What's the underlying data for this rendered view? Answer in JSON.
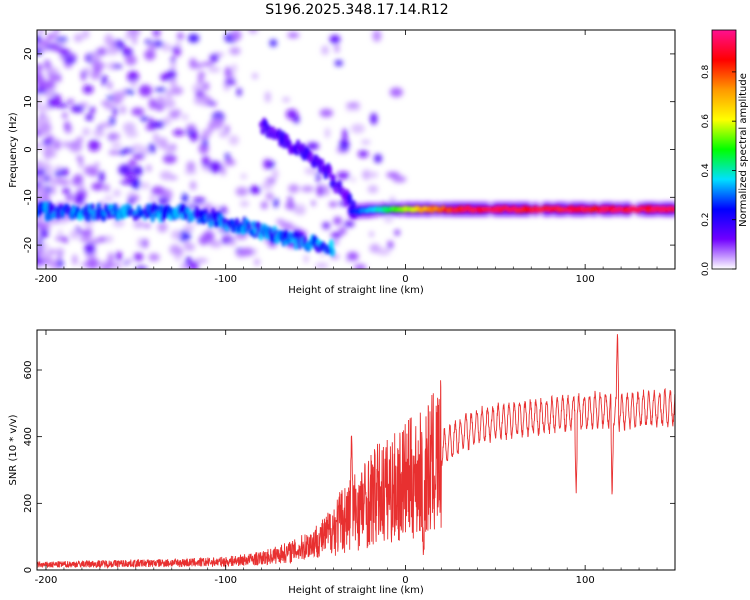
{
  "title": "S196.2025.348.17.14.R12",
  "chart_data": [
    {
      "type": "heatmap",
      "xlabel": "Height of straight line (km)",
      "ylabel": "Frequency (Hz)",
      "xlim": [
        -205,
        150
      ],
      "ylim": [
        -25,
        25
      ],
      "xticks": [
        -200,
        -100,
        0,
        100
      ],
      "yticks": [
        -20,
        -10,
        0,
        10,
        20
      ],
      "colorbar": {
        "label": "Normalized spectral amplitude",
        "range": [
          0,
          0.97
        ],
        "ticks": [
          0.0,
          0.2,
          0.4,
          0.6,
          0.8
        ],
        "tick_labels": [
          "0.0",
          "0.2",
          "0.4",
          "0.6",
          "0.8"
        ],
        "colors": [
          "#ffffff",
          "#7000ff",
          "#0000ff",
          "#00e0ff",
          "#00ff00",
          "#ffff00",
          "#ff9900",
          "#ff0000",
          "#ff1090"
        ]
      },
      "bands": [
        {
          "name": "main-band",
          "points": [
            [
              -205,
              -13
            ],
            [
              -180,
              -13
            ],
            [
              -150,
              -13
            ],
            [
              -120,
              -13.5
            ],
            [
              -100,
              -15
            ],
            [
              -80,
              -17
            ],
            [
              -60,
              -19
            ],
            [
              -40,
              -21
            ]
          ],
          "amplitude": 0.25
        },
        {
          "name": "rising-trace",
          "points": [
            [
              -80,
              5
            ],
            [
              -60,
              0
            ],
            [
              -45,
              -4
            ],
            [
              -35,
              -9
            ],
            [
              -28,
              -13
            ]
          ],
          "amplitude": 0.15
        },
        {
          "name": "steady-band",
          "points": [
            [
              -30,
              -13
            ],
            [
              -10,
              -12.5
            ],
            [
              0,
              -12.5
            ],
            [
              20,
              -12.5
            ],
            [
              60,
              -12.5
            ],
            [
              100,
              -12.5
            ],
            [
              150,
              -12.5
            ]
          ],
          "amplitude": 0.85
        }
      ]
    },
    {
      "type": "line",
      "xlabel": "Height of straight line (km)",
      "ylabel": "SNR (10 * v/v)",
      "xlim": [
        -205,
        150
      ],
      "ylim": [
        0,
        720
      ],
      "xticks": [
        -200,
        -100,
        0,
        100
      ],
      "yticks": [
        0,
        200,
        400,
        600
      ],
      "color": "#e83030",
      "series": {
        "x": [
          -205,
          -180,
          -150,
          -120,
          -100,
          -80,
          -60,
          -45,
          -35,
          -25,
          -15,
          -5,
          0,
          10,
          20,
          30,
          40,
          50,
          60,
          70,
          80,
          90,
          100,
          110,
          120,
          130,
          140,
          150
        ],
        "y": [
          15,
          18,
          20,
          22,
          25,
          35,
          60,
          100,
          160,
          200,
          240,
          260,
          280,
          300,
          360,
          400,
          430,
          440,
          450,
          455,
          460,
          470,
          470,
          480,
          470,
          480,
          480,
          485
        ]
      },
      "features": [
        {
          "x": -30,
          "y": 420
        },
        {
          "x": 10,
          "y": 30
        },
        {
          "x": 95,
          "y": 230
        },
        {
          "x": 115,
          "y": 210
        },
        {
          "x": 118,
          "y": 720
        }
      ]
    }
  ]
}
